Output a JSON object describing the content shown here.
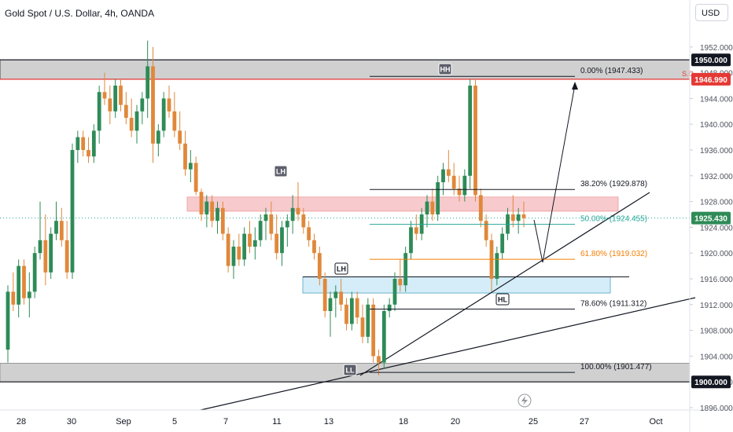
{
  "header": {
    "title": "Gold Spot / U.S. Dollar, 4h, OANDA",
    "currency_button": "USD"
  },
  "colors": {
    "up": "#2e8b57",
    "down": "#e0883a",
    "zone_gray": "#c8c8c8",
    "resistance_zone": "#f6c1c4",
    "support_zone": "#cdeaf7",
    "red_line": "#e53935",
    "fib_teal": "#26a69a",
    "fib_orange": "#f57c00"
  },
  "chart_data": {
    "type": "candlestick",
    "symbol": "Gold Spot / U.S. Dollar",
    "timeframe": "4h",
    "ylim": [
      1895.5,
      1955
    ],
    "y_ticks": [
      1896,
      1900,
      1904,
      1908,
      1912,
      1916,
      1920,
      1924,
      1928,
      1932,
      1936,
      1940,
      1944,
      1948,
      1952
    ],
    "x_ticks": [
      "28",
      "30",
      "Sep",
      "5",
      "7",
      "11",
      "13",
      "18",
      "20",
      "25",
      "27",
      "Oct"
    ],
    "price_tags": [
      {
        "value": "1950.000",
        "style": "dark"
      },
      {
        "value": "1946.990",
        "style": "red"
      },
      {
        "value": "1925.430",
        "style": "green"
      },
      {
        "value": "1900.000",
        "style": "dark"
      }
    ],
    "fib_levels": [
      {
        "label": "0.00% (1947.433)",
        "price": 1947.433
      },
      {
        "label": "38.20% (1929.878)",
        "price": 1929.878
      },
      {
        "label": "50.00% (1924.455)",
        "price": 1924.455
      },
      {
        "label": "61.80% (1919.032)",
        "price": 1919.032
      },
      {
        "label": "78.60% (1911.312)",
        "price": 1911.312
      },
      {
        "label": "100.00% (1901.477)",
        "price": 1901.477
      }
    ],
    "annotations": [
      "HH",
      "LH",
      "LH",
      "HL",
      "LL",
      "S.D"
    ],
    "zones": [
      {
        "name": "supply-gray",
        "from": 1946.99,
        "to": 1950.0
      },
      {
        "name": "resistance",
        "from": 1926.5,
        "to": 1928.7
      },
      {
        "name": "support",
        "from": 1913.8,
        "to": 1916.3
      },
      {
        "name": "demand-gray",
        "from": 1900.0,
        "to": 1902.9
      }
    ],
    "candles": [
      [
        1905,
        1915,
        1903,
        1914
      ],
      [
        1914,
        1917,
        1911,
        1912
      ],
      [
        1912,
        1919,
        1910,
        1918
      ],
      [
        1918,
        1919,
        1912,
        1913
      ],
      [
        1913,
        1917,
        1910,
        1914
      ],
      [
        1914,
        1921,
        1913,
        1920
      ],
      [
        1920,
        1928,
        1919,
        1922
      ],
      [
        1922,
        1926,
        1915,
        1917
      ],
      [
        1917,
        1924,
        1916,
        1923
      ],
      [
        1923,
        1928,
        1922,
        1925
      ],
      [
        1925,
        1927,
        1921,
        1922
      ],
      [
        1922,
        1925,
        1916,
        1917
      ],
      [
        1917,
        1937,
        1916,
        1936
      ],
      [
        1936,
        1939,
        1934,
        1938
      ],
      [
        1938,
        1939,
        1935,
        1936
      ],
      [
        1936,
        1938,
        1934,
        1935
      ],
      [
        1935,
        1940,
        1934,
        1939
      ],
      [
        1939,
        1946,
        1937,
        1945
      ],
      [
        1945,
        1948,
        1943,
        1944
      ],
      [
        1944,
        1946,
        1940,
        1942
      ],
      [
        1942,
        1947,
        1941,
        1946
      ],
      [
        1946,
        1947,
        1942,
        1943
      ],
      [
        1943,
        1945,
        1940,
        1941
      ],
      [
        1941,
        1944,
        1938,
        1939
      ],
      [
        1939,
        1943,
        1937,
        1942
      ],
      [
        1942,
        1945,
        1940,
        1944
      ],
      [
        1944,
        1953,
        1941,
        1949
      ],
      [
        1949,
        1952,
        1934,
        1937
      ],
      [
        1937,
        1940,
        1935,
        1939
      ],
      [
        1939,
        1945,
        1938,
        1944
      ],
      [
        1944,
        1946,
        1941,
        1942
      ],
      [
        1942,
        1945,
        1938,
        1939
      ],
      [
        1939,
        1942,
        1936,
        1937
      ],
      [
        1937,
        1939,
        1932,
        1933
      ],
      [
        1933,
        1936,
        1931,
        1934
      ],
      [
        1934,
        1935,
        1929,
        1929.5
      ],
      [
        1929.5,
        1930,
        1925,
        1926
      ],
      [
        1926,
        1929,
        1924,
        1928
      ],
      [
        1928,
        1929,
        1924,
        1925
      ],
      [
        1925,
        1928,
        1923,
        1927
      ],
      [
        1927,
        1928,
        1922,
        1923
      ],
      [
        1923,
        1924,
        1917,
        1918
      ],
      [
        1918,
        1922,
        1916,
        1921
      ],
      [
        1921,
        1923,
        1918,
        1919
      ],
      [
        1919,
        1924,
        1918,
        1923
      ],
      [
        1923,
        1925,
        1920,
        1921
      ],
      [
        1921,
        1924,
        1919,
        1922
      ],
      [
        1922,
        1926,
        1921,
        1925
      ],
      [
        1925,
        1927,
        1922,
        1926
      ],
      [
        1926,
        1928,
        1922,
        1923
      ],
      [
        1923,
        1926,
        1919,
        1920
      ],
      [
        1920,
        1925,
        1918,
        1924
      ],
      [
        1924,
        1926,
        1921,
        1925
      ],
      [
        1925,
        1929,
        1923,
        1927
      ],
      [
        1927,
        1931,
        1925,
        1926
      ],
      [
        1926,
        1927,
        1923,
        1924
      ],
      [
        1924,
        1925,
        1921,
        1922
      ],
      [
        1922,
        1923,
        1919,
        1920
      ],
      [
        1920,
        1921,
        1915,
        1916
      ],
      [
        1916,
        1917,
        1910,
        1911
      ],
      [
        1911,
        1914,
        1907,
        1913
      ],
      [
        1913,
        1915,
        1910,
        1914
      ],
      [
        1914,
        1916,
        1911,
        1912
      ],
      [
        1912,
        1913,
        1908,
        1909
      ],
      [
        1909,
        1914,
        1908,
        1913
      ],
      [
        1913,
        1914,
        1909,
        1910
      ],
      [
        1910,
        1912,
        1906,
        1907
      ],
      [
        1907,
        1913,
        1906,
        1912
      ],
      [
        1912,
        1913,
        1903,
        1904
      ],
      [
        1904,
        1905,
        1901,
        1903
      ],
      [
        1903,
        1912,
        1902,
        1911
      ],
      [
        1911,
        1913,
        1910,
        1912
      ],
      [
        1912,
        1917,
        1911,
        1916
      ],
      [
        1916,
        1919,
        1914,
        1915
      ],
      [
        1915,
        1921,
        1914,
        1920
      ],
      [
        1920,
        1925,
        1919,
        1924
      ],
      [
        1924,
        1926,
        1922,
        1923
      ],
      [
        1923,
        1927,
        1922,
        1926
      ],
      [
        1926,
        1929,
        1924,
        1928
      ],
      [
        1928,
        1930,
        1925,
        1926
      ],
      [
        1926,
        1932,
        1925,
        1931
      ],
      [
        1931,
        1934,
        1929,
        1933
      ],
      [
        1933,
        1936,
        1931,
        1932
      ],
      [
        1932,
        1934,
        1929,
        1930
      ],
      [
        1930,
        1932,
        1928,
        1929
      ],
      [
        1929,
        1933,
        1928,
        1932
      ],
      [
        1932,
        1947,
        1930,
        1946
      ],
      [
        1946,
        1947,
        1928,
        1929
      ],
      [
        1929,
        1930,
        1924,
        1925
      ],
      [
        1925,
        1926,
        1921,
        1922
      ],
      [
        1922,
        1923,
        1914,
        1916
      ],
      [
        1916,
        1921,
        1915,
        1920
      ],
      [
        1920,
        1924,
        1919,
        1923
      ],
      [
        1923,
        1927,
        1922,
        1926
      ],
      [
        1926,
        1929,
        1924,
        1925
      ],
      [
        1925,
        1927,
        1923,
        1926
      ],
      [
        1926,
        1928,
        1924,
        1925.43
      ]
    ]
  }
}
